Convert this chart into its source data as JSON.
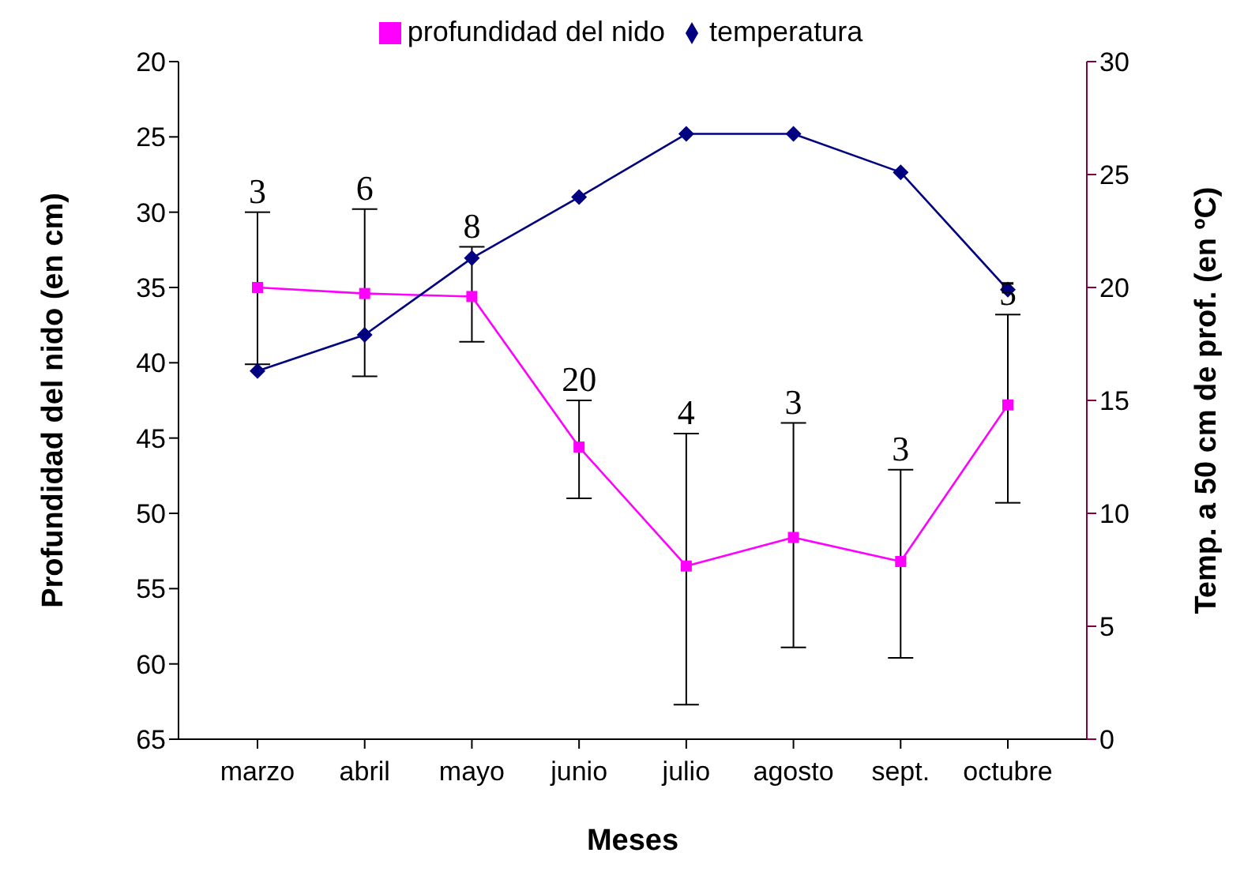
{
  "chart_data": {
    "type": "line",
    "xlabel": "Meses",
    "ylabel": "Profundidad del nido (en cm)",
    "y2label": "Temp. a 50 cm de prof. (en ºC)",
    "categories": [
      "marzo",
      "abril",
      "mayo",
      "junio",
      "julio",
      "agosto",
      "sept.",
      "octubre"
    ],
    "series": [
      {
        "name": "profundidad del nido",
        "color": "#ff00ff",
        "marker": "square",
        "values": [
          35.0,
          35.4,
          35.6,
          45.6,
          53.5,
          51.6,
          53.2,
          42.8
        ],
        "errors": [
          [
            30.0,
            40.1
          ],
          [
            29.8,
            40.9
          ],
          [
            32.3,
            38.6
          ],
          [
            42.5,
            49.0
          ],
          [
            44.7,
            62.7
          ],
          [
            44.0,
            58.9
          ],
          [
            47.1,
            59.6
          ],
          [
            36.8,
            49.3
          ]
        ]
      },
      {
        "name": "temperatura",
        "color": "#000080",
        "marker": "diamond",
        "axis": "y2",
        "values": [
          16.3,
          17.9,
          21.3,
          24.0,
          26.8,
          26.8,
          25.1,
          19.9
        ]
      }
    ],
    "ylim": [
      65,
      20
    ],
    "yticks": [
      20,
      25,
      30,
      35,
      40,
      45,
      50,
      55,
      60,
      65
    ],
    "y2lim": [
      0,
      30
    ],
    "y2ticks": [
      0,
      5,
      10,
      15,
      20,
      25,
      30
    ],
    "annotations": [
      "3",
      "6",
      "8",
      "20",
      "4",
      "3",
      "3",
      "5"
    ],
    "legend": "top",
    "grid": false
  }
}
